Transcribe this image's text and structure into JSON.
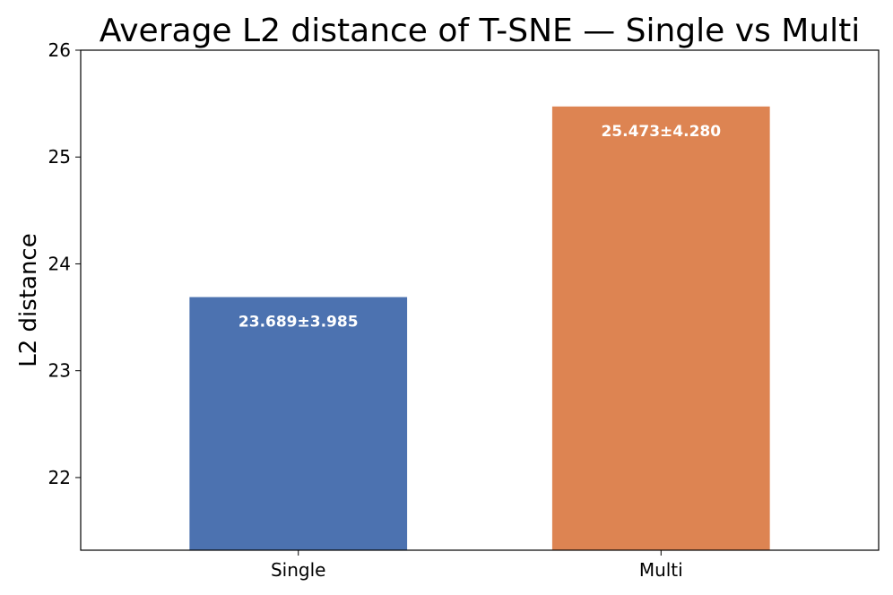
{
  "chart_data": {
    "type": "bar",
    "title": "Average L2 distance of T-SNE — Single vs Multi",
    "xlabel": "",
    "ylabel": "L2 distance",
    "categories": [
      "Single",
      "Multi"
    ],
    "values": [
      23.689,
      25.473
    ],
    "errors": [
      3.985,
      4.28
    ],
    "data_labels": [
      "23.689±3.985",
      "25.473±4.280"
    ],
    "colors": [
      "#4c72b0",
      "#dd8452"
    ],
    "ylim": [
      21.32,
      26.0
    ],
    "yticks": [
      22,
      23,
      24,
      25,
      26
    ],
    "grid": false,
    "legend": "none"
  }
}
